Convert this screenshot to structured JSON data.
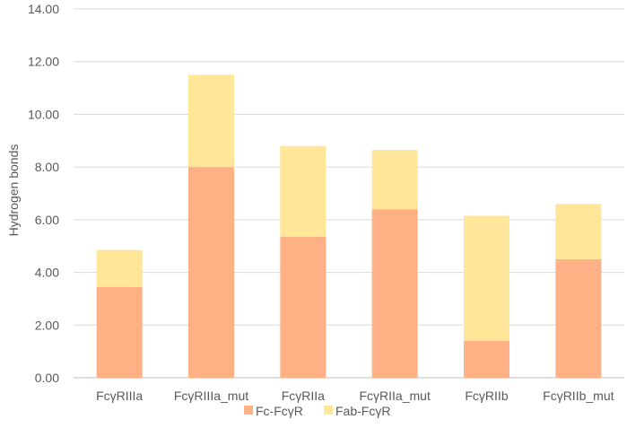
{
  "chart_data": {
    "type": "bar",
    "stacked": true,
    "title": "",
    "xlabel": "",
    "ylabel": "Hydrogen bonds",
    "ylim": [
      0,
      14
    ],
    "y_ticks": [
      "0.00",
      "2.00",
      "4.00",
      "6.00",
      "8.00",
      "10.00",
      "12.00",
      "14.00"
    ],
    "y_tick_values": [
      0,
      2,
      4,
      6,
      8,
      10,
      12,
      14
    ],
    "grid": true,
    "legend_position": "bottom",
    "categories": [
      "FcγRIIIa",
      "FcγRIIIa_mut",
      "FcγRIIa",
      "FcγRIIa_mut",
      "FcγRIIb",
      "FcγRIIb_mut"
    ],
    "series": [
      {
        "name": "Fc-FcγR",
        "color": "#FFB084",
        "values": [
          3.45,
          8.0,
          5.35,
          6.4,
          1.4,
          4.5
        ]
      },
      {
        "name": "Fab-FcγR",
        "color": "#FFE699",
        "values": [
          1.4,
          3.5,
          3.45,
          2.25,
          4.75,
          2.1
        ]
      }
    ]
  }
}
